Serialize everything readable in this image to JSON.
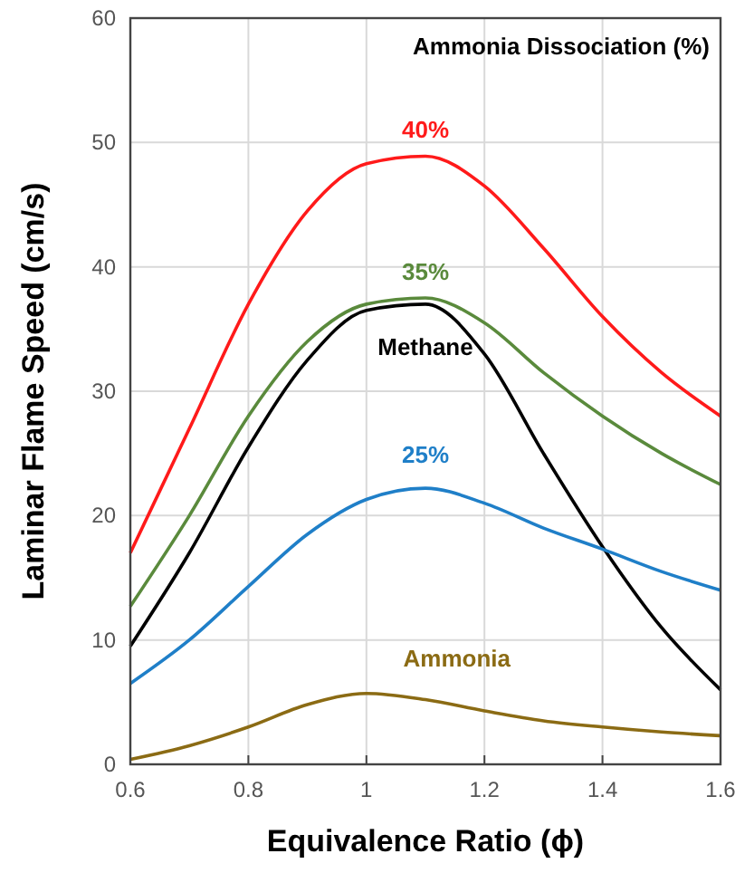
{
  "chart_data": {
    "type": "line",
    "xlabel": "Equivalence Ratio (ϕ)",
    "ylabel": "Laminar Flame Speed (cm/s)",
    "annotations": [
      "Ammonia Dissociation (%)"
    ],
    "x": [
      0.6,
      0.7,
      0.8,
      0.9,
      1.0,
      1.1,
      1.2,
      1.3,
      1.4,
      1.5,
      1.6
    ],
    "series": [
      {
        "name": "40%",
        "color": "#ff1a1a",
        "values": [
          17,
          27,
          37,
          44.5,
          48.3,
          48.9,
          46.5,
          41.5,
          36,
          31.5,
          28
        ]
      },
      {
        "name": "35%",
        "color": "#5a8a3c",
        "values": [
          12.7,
          20,
          28,
          34,
          37,
          37.5,
          35.5,
          31.5,
          28,
          25,
          22.5
        ]
      },
      {
        "name": "Methane",
        "color": "#000000",
        "values": [
          9.5,
          17,
          25.5,
          32.5,
          36.5,
          37,
          33,
          25,
          17.5,
          11,
          6
        ]
      },
      {
        "name": "25%",
        "color": "#1f7fc8",
        "values": [
          6.5,
          10,
          14.3,
          18.5,
          21.3,
          22.2,
          21,
          19,
          17.3,
          15.5,
          14
        ]
      },
      {
        "name": "Ammonia",
        "color": "#8b6b14",
        "values": [
          0.4,
          1.5,
          3,
          4.8,
          5.7,
          5.2,
          4.3,
          3.5,
          3,
          2.6,
          2.3
        ]
      }
    ],
    "xlim": [
      0.6,
      1.6
    ],
    "xticks": [
      0.6,
      0.8,
      1,
      1.2,
      1.4,
      1.6
    ],
    "ylim": [
      0,
      60
    ],
    "yticks": [
      0,
      10,
      20,
      30,
      40,
      50,
      60
    ],
    "grid": true,
    "marker": "none",
    "line_style": "solid"
  }
}
